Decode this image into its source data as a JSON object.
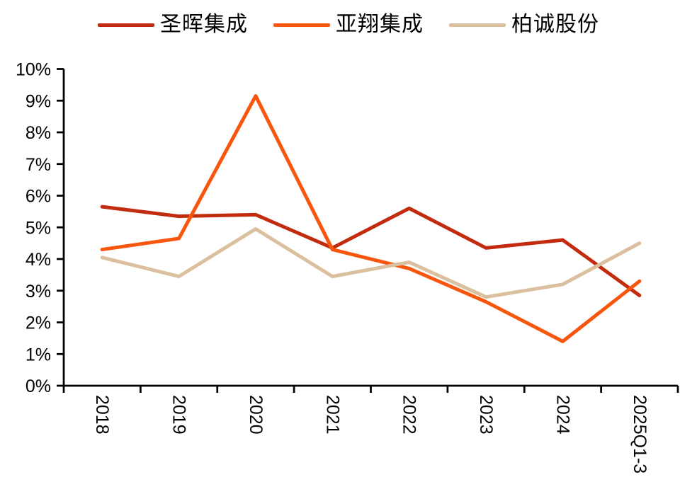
{
  "legend": {
    "items": [
      {
        "label": "圣晖集成",
        "color": "#C22B0D"
      },
      {
        "label": "亚翔集成",
        "color": "#F8560C"
      },
      {
        "label": "柏诚股份",
        "color": "#DAC09E"
      }
    ]
  },
  "chart_data": {
    "type": "line",
    "title": "",
    "xlabel": "",
    "ylabel": "",
    "grid": false,
    "legend_position": "top",
    "categories": [
      "2018",
      "2019",
      "2020",
      "2021",
      "2022",
      "2023",
      "2024",
      "2025Q1-3"
    ],
    "series": [
      {
        "name": "圣晖集成",
        "color": "#C22B0D",
        "values": [
          5.65,
          5.35,
          5.4,
          4.35,
          5.6,
          4.35,
          4.6,
          2.85
        ]
      },
      {
        "name": "亚翔集成",
        "color": "#F8560C",
        "values": [
          4.3,
          4.65,
          9.15,
          4.3,
          3.7,
          2.65,
          1.4,
          3.3
        ]
      },
      {
        "name": "柏诚股份",
        "color": "#DAC09E",
        "values": [
          4.05,
          3.45,
          4.95,
          3.45,
          3.9,
          2.8,
          3.2,
          4.5
        ]
      }
    ],
    "y_axis": {
      "min": 0,
      "max": 10,
      "step": 1,
      "unit": "%"
    },
    "y_tick_labels": [
      "0%",
      "1%",
      "2%",
      "3%",
      "4%",
      "5%",
      "6%",
      "7%",
      "8%",
      "9%",
      "10%"
    ],
    "x_tick_label_rotation": 90
  }
}
